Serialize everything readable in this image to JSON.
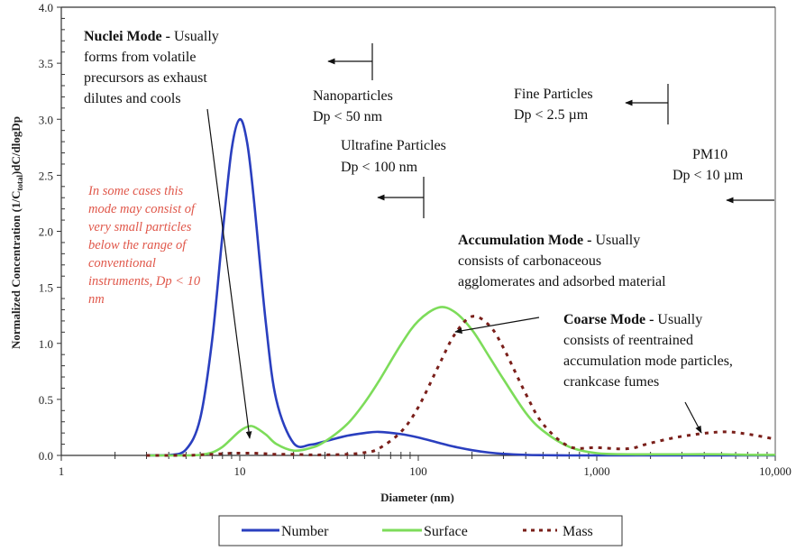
{
  "chart_data": {
    "type": "line",
    "title": "",
    "xlabel": "Diameter (nm)",
    "ylabel": "Normalized Concentration (1/C_total)dC/dlogDp",
    "ylabel_parts": [
      "Normalized Concentration  (1/C",
      "total",
      ")dC/dlogDp"
    ],
    "xscale": "log",
    "xlim": [
      1,
      10000
    ],
    "ylim": [
      0,
      4.0
    ],
    "x_ticks": [
      1,
      10,
      100,
      1000,
      10000
    ],
    "x_tick_labels": [
      "1",
      "10",
      "100",
      "1,000",
      "10,000"
    ],
    "y_ticks": [
      0,
      0.5,
      1,
      1.5,
      2,
      2.5,
      3,
      3.5,
      4
    ],
    "y_tick_labels": [
      "0.0",
      "0.5",
      "1.0",
      "1.5",
      "2.0",
      "2.5",
      "3.0",
      "3.5",
      "4.0"
    ],
    "legend_position": "bottom",
    "x": [
      3,
      4,
      5,
      6,
      7,
      8,
      9,
      10,
      11,
      12,
      14,
      16,
      20,
      25,
      30,
      40,
      50,
      60,
      80,
      100,
      130,
      160,
      200,
      250,
      300,
      400,
      500,
      700,
      1000,
      1500,
      2000,
      3000,
      5000,
      7000,
      10000
    ],
    "series": [
      {
        "name": "Number",
        "color": "#2a3fbf",
        "style": "solid",
        "values": [
          0,
          0.003,
          0.053,
          0.33,
          1.03,
          1.97,
          2.73,
          3.0,
          2.79,
          2.28,
          1.18,
          0.5,
          0.11,
          0.096,
          0.126,
          0.176,
          0.2,
          0.21,
          0.19,
          0.16,
          0.113,
          0.077,
          0.047,
          0.025,
          0.014,
          0.005,
          0.002,
          0,
          0,
          0,
          0,
          0,
          0,
          0,
          0
        ]
      },
      {
        "name": "Surface",
        "color": "#7ddc5a",
        "style": "solid",
        "values": [
          0,
          0,
          0,
          0.005,
          0.026,
          0.076,
          0.15,
          0.217,
          0.255,
          0.256,
          0.186,
          0.103,
          0.043,
          0.067,
          0.124,
          0.28,
          0.47,
          0.66,
          0.99,
          1.2,
          1.32,
          1.28,
          1.12,
          0.88,
          0.68,
          0.38,
          0.22,
          0.077,
          0.02,
          0.01,
          0.01,
          0.01,
          0.01,
          0.005,
          0.005
        ]
      },
      {
        "name": "Mass",
        "color": "#7a1f1a",
        "style": "dotted",
        "values": [
          0,
          0,
          0,
          0.005,
          0.01,
          0.015,
          0.02,
          0.02,
          0.02,
          0.02,
          0.015,
          0.01,
          0.01,
          0.005,
          0.005,
          0.01,
          0.025,
          0.06,
          0.21,
          0.43,
          0.8,
          1.08,
          1.24,
          1.16,
          0.96,
          0.55,
          0.28,
          0.08,
          0.07,
          0.06,
          0.11,
          0.17,
          0.21,
          0.19,
          0.145
        ]
      }
    ],
    "annotations": {
      "nuclei": {
        "bold": "Nuclei Mode -",
        "lines": [
          " Usually",
          "forms from volatile",
          "precursors as exhaust",
          "dilutes and cools"
        ]
      },
      "nuclei_note": [
        "In some cases this",
        "mode may consist of",
        "very small particles",
        "below the range of",
        "conventional",
        "instruments, Dp < 10",
        "nm"
      ],
      "nanoparticles": [
        "Nanoparticles",
        "Dp < 50 nm"
      ],
      "ultrafine": [
        "Ultrafine Particles",
        "Dp < 100 nm"
      ],
      "fine": [
        "Fine Particles",
        "Dp < 2.5 µm"
      ],
      "pm10": [
        "PM10",
        "Dp < 10 µm"
      ],
      "accumulation": {
        "bold": "Accumulation Mode -",
        "lines": [
          " Usually",
          "consists of carbonaceous",
          "agglomerates and adsorbed material"
        ]
      },
      "coarse": {
        "bold": "Coarse Mode -",
        "lines": [
          " Usually",
          "consists of reentrained",
          "accumulation mode particles,",
          "crankcase fumes"
        ]
      }
    }
  }
}
